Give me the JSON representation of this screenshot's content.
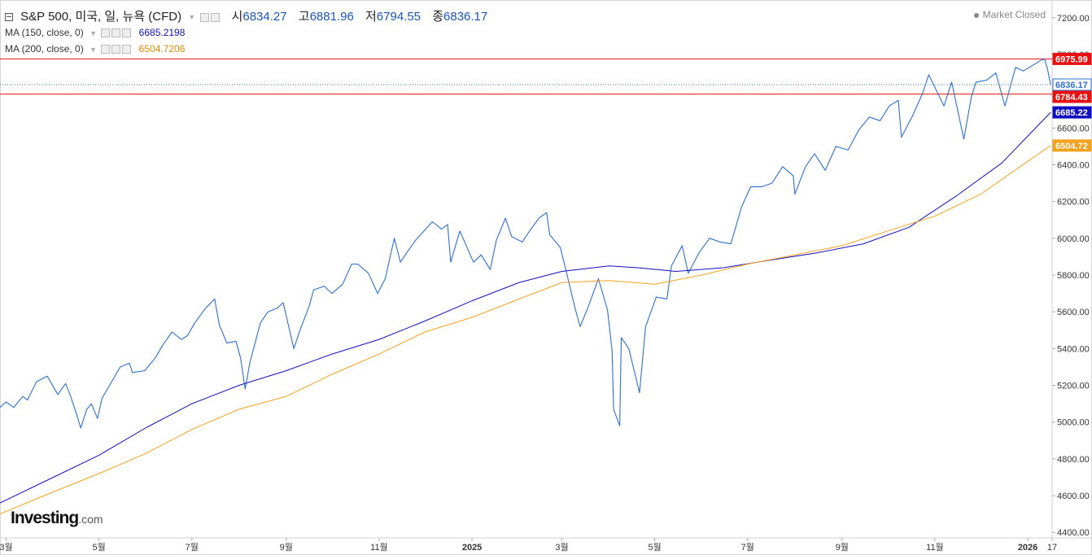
{
  "header": {
    "title": "S&P 500, 미국, 일, 뉴욕 (CFD)",
    "open_label": "시",
    "open_value": "6834.27",
    "high_label": "고",
    "high_value": "6881.96",
    "low_label": "저",
    "low_value": "6794.55",
    "close_label": "종",
    "close_value": "6836.17",
    "market_status": "Market Closed"
  },
  "indicators": [
    {
      "label": "MA (150, close, 0)",
      "value": "6685.2198",
      "color": "#1010c0"
    },
    {
      "label": "MA (200, close, 0)",
      "value": "6504.7206",
      "color": "#e08a00"
    }
  ],
  "brand": {
    "name": "Investing",
    "suffix": ".com"
  },
  "colors": {
    "price": "#2f6fd0",
    "ma150": "#1010c0",
    "ma200": "#f4a21e",
    "resistance": "#e81010",
    "last": "#2f6fd0"
  },
  "chart_data": {
    "type": "line",
    "y_axis_ticks": [
      4400,
      4600,
      4800,
      5000,
      5200,
      5400,
      5600,
      5800,
      6000,
      6200,
      6400,
      6600,
      6800,
      7000,
      7200
    ],
    "y_axis_tick_labels": [
      "4400.00",
      "4600.00",
      "4800.00",
      "5000.00",
      "5200.00",
      "5400.00",
      "5600.00",
      "5800.00",
      "6000.00",
      "6200.00",
      "6400.00",
      "6600.00",
      "6800.00",
      "7000.00",
      "7200.00"
    ],
    "ylim": [
      4370,
      7270
    ],
    "x_range": [
      "2024-02-26",
      "2026-01-17"
    ],
    "x_ticks": [
      {
        "date": "2024-03-01",
        "label": "3월"
      },
      {
        "date": "2024-05-01",
        "label": "5월"
      },
      {
        "date": "2024-07-01",
        "label": "7월"
      },
      {
        "date": "2024-09-01",
        "label": "9월"
      },
      {
        "date": "2024-11-01",
        "label": "11월"
      },
      {
        "date": "2025-01-01",
        "label": "2025",
        "bold": true
      },
      {
        "date": "2025-03-01",
        "label": "3월"
      },
      {
        "date": "2025-05-01",
        "label": "5월"
      },
      {
        "date": "2025-07-01",
        "label": "7월"
      },
      {
        "date": "2025-09-01",
        "label": "9월"
      },
      {
        "date": "2025-11-01",
        "label": "11월"
      },
      {
        "date": "2026-01-01",
        "label": "2026",
        "bold": true
      },
      {
        "date": "2026-01-17",
        "label": "17"
      }
    ],
    "horizontal_lines": [
      {
        "value": 6975.99,
        "label": "6975.99",
        "color": "#e81010",
        "style": "solid"
      },
      {
        "value": 6784.43,
        "label": "6784.43",
        "color": "#e81010",
        "style": "solid"
      },
      {
        "value": 6836.17,
        "label": "6836.17",
        "color": "#2f6fd0",
        "style": "dotted"
      }
    ],
    "series": [
      {
        "key": "price",
        "points": [
          [
            "2024-02-26",
            5080
          ],
          [
            "2024-03-01",
            5110
          ],
          [
            "2024-03-06",
            5080
          ],
          [
            "2024-03-12",
            5140
          ],
          [
            "2024-03-15",
            5120
          ],
          [
            "2024-03-21",
            5220
          ],
          [
            "2024-03-28",
            5250
          ],
          [
            "2024-04-04",
            5150
          ],
          [
            "2024-04-09",
            5210
          ],
          [
            "2024-04-12",
            5150
          ],
          [
            "2024-04-16",
            5050
          ],
          [
            "2024-04-19",
            4968
          ],
          [
            "2024-04-23",
            5070
          ],
          [
            "2024-04-26",
            5100
          ],
          [
            "2024-04-30",
            5020
          ],
          [
            "2024-05-03",
            5130
          ],
          [
            "2024-05-08",
            5200
          ],
          [
            "2024-05-15",
            5300
          ],
          [
            "2024-05-21",
            5320
          ],
          [
            "2024-05-23",
            5270
          ],
          [
            "2024-05-31",
            5280
          ],
          [
            "2024-06-07",
            5350
          ],
          [
            "2024-06-12",
            5420
          ],
          [
            "2024-06-18",
            5490
          ],
          [
            "2024-06-24",
            5450
          ],
          [
            "2024-06-28",
            5470
          ],
          [
            "2024-07-03",
            5540
          ],
          [
            "2024-07-10",
            5620
          ],
          [
            "2024-07-16",
            5670
          ],
          [
            "2024-07-19",
            5530
          ],
          [
            "2024-07-24",
            5430
          ],
          [
            "2024-07-30",
            5440
          ],
          [
            "2024-08-02",
            5350
          ],
          [
            "2024-08-05",
            5180
          ],
          [
            "2024-08-08",
            5320
          ],
          [
            "2024-08-15",
            5540
          ],
          [
            "2024-08-20",
            5600
          ],
          [
            "2024-08-26",
            5620
          ],
          [
            "2024-08-30",
            5650
          ],
          [
            "2024-09-06",
            5400
          ],
          [
            "2024-09-10",
            5500
          ],
          [
            "2024-09-16",
            5630
          ],
          [
            "2024-09-19",
            5720
          ],
          [
            "2024-09-26",
            5740
          ],
          [
            "2024-10-01",
            5700
          ],
          [
            "2024-10-08",
            5750
          ],
          [
            "2024-10-14",
            5860
          ],
          [
            "2024-10-18",
            5860
          ],
          [
            "2024-10-25",
            5810
          ],
          [
            "2024-10-31",
            5700
          ],
          [
            "2024-11-05",
            5780
          ],
          [
            "2024-11-11",
            6000
          ],
          [
            "2024-11-15",
            5870
          ],
          [
            "2024-11-19",
            5920
          ],
          [
            "2024-11-25",
            5990
          ],
          [
            "2024-12-06",
            6090
          ],
          [
            "2024-12-12",
            6050
          ],
          [
            "2024-12-16",
            6075
          ],
          [
            "2024-12-18",
            5870
          ],
          [
            "2024-12-24",
            6040
          ],
          [
            "2025-01-02",
            5870
          ],
          [
            "2025-01-07",
            5910
          ],
          [
            "2025-01-13",
            5830
          ],
          [
            "2025-01-17",
            5990
          ],
          [
            "2025-01-23",
            6110
          ],
          [
            "2025-01-27",
            6010
          ],
          [
            "2025-02-03",
            5980
          ],
          [
            "2025-02-07",
            6030
          ],
          [
            "2025-02-14",
            6110
          ],
          [
            "2025-02-19",
            6140
          ],
          [
            "2025-02-21",
            6020
          ],
          [
            "2025-02-28",
            5950
          ],
          [
            "2025-03-03",
            5850
          ],
          [
            "2025-03-10",
            5610
          ],
          [
            "2025-03-13",
            5520
          ],
          [
            "2025-03-18",
            5620
          ],
          [
            "2025-03-25",
            5780
          ],
          [
            "2025-03-31",
            5610
          ],
          [
            "2025-04-03",
            5390
          ],
          [
            "2025-04-04",
            5070
          ],
          [
            "2025-04-08",
            4980
          ],
          [
            "2025-04-09",
            5460
          ],
          [
            "2025-04-14",
            5400
          ],
          [
            "2025-04-21",
            5160
          ],
          [
            "2025-04-25",
            5520
          ],
          [
            "2025-05-02",
            5680
          ],
          [
            "2025-05-09",
            5670
          ],
          [
            "2025-05-12",
            5850
          ],
          [
            "2025-05-19",
            5960
          ],
          [
            "2025-05-23",
            5810
          ],
          [
            "2025-05-30",
            5920
          ],
          [
            "2025-06-06",
            6000
          ],
          [
            "2025-06-13",
            5980
          ],
          [
            "2025-06-20",
            5970
          ],
          [
            "2025-06-27",
            6170
          ],
          [
            "2025-07-03",
            6280
          ],
          [
            "2025-07-10",
            6280
          ],
          [
            "2025-07-17",
            6300
          ],
          [
            "2025-07-24",
            6390
          ],
          [
            "2025-07-31",
            6340
          ],
          [
            "2025-08-01",
            6240
          ],
          [
            "2025-08-08",
            6390
          ],
          [
            "2025-08-14",
            6460
          ],
          [
            "2025-08-21",
            6370
          ],
          [
            "2025-08-28",
            6500
          ],
          [
            "2025-09-05",
            6480
          ],
          [
            "2025-09-12",
            6590
          ],
          [
            "2025-09-19",
            6660
          ],
          [
            "2025-09-26",
            6640
          ],
          [
            "2025-10-02",
            6720
          ],
          [
            "2025-10-08",
            6750
          ],
          [
            "2025-10-10",
            6550
          ],
          [
            "2025-10-17",
            6660
          ],
          [
            "2025-10-24",
            6790
          ],
          [
            "2025-10-28",
            6890
          ],
          [
            "2025-11-04",
            6770
          ],
          [
            "2025-11-07",
            6720
          ],
          [
            "2025-11-12",
            6850
          ],
          [
            "2025-11-20",
            6540
          ],
          [
            "2025-11-25",
            6770
          ],
          [
            "2025-11-28",
            6850
          ],
          [
            "2025-12-05",
            6860
          ],
          [
            "2025-12-11",
            6900
          ],
          [
            "2025-12-17",
            6720
          ],
          [
            "2025-12-24",
            6930
          ],
          [
            "2025-12-29",
            6910
          ],
          [
            "2026-01-06",
            6950
          ],
          [
            "2026-01-09",
            6966
          ],
          [
            "2026-01-12",
            6977
          ],
          [
            "2026-01-14",
            6920
          ],
          [
            "2026-01-16",
            6836
          ]
        ]
      },
      {
        "key": "ma150",
        "points": [
          [
            "2024-02-26",
            4560
          ],
          [
            "2024-04-01",
            4700
          ],
          [
            "2024-05-01",
            4820
          ],
          [
            "2024-06-01",
            4970
          ],
          [
            "2024-07-01",
            5100
          ],
          [
            "2024-08-01",
            5200
          ],
          [
            "2024-09-01",
            5280
          ],
          [
            "2024-10-01",
            5370
          ],
          [
            "2024-11-01",
            5450
          ],
          [
            "2024-12-01",
            5550
          ],
          [
            "2025-01-01",
            5660
          ],
          [
            "2025-02-01",
            5760
          ],
          [
            "2025-03-01",
            5820
          ],
          [
            "2025-04-01",
            5850
          ],
          [
            "2025-04-20",
            5840
          ],
          [
            "2025-05-15",
            5820
          ],
          [
            "2025-06-15",
            5840
          ],
          [
            "2025-07-15",
            5880
          ],
          [
            "2025-08-15",
            5920
          ],
          [
            "2025-09-15",
            5970
          ],
          [
            "2025-10-15",
            6060
          ],
          [
            "2025-11-15",
            6230
          ],
          [
            "2025-12-15",
            6410
          ],
          [
            "2026-01-16",
            6685
          ]
        ]
      },
      {
        "key": "ma200",
        "points": [
          [
            "2024-02-26",
            4500
          ],
          [
            "2024-04-01",
            4620
          ],
          [
            "2024-05-01",
            4720
          ],
          [
            "2024-06-01",
            4830
          ],
          [
            "2024-07-01",
            4960
          ],
          [
            "2024-08-01",
            5070
          ],
          [
            "2024-09-01",
            5140
          ],
          [
            "2024-10-01",
            5260
          ],
          [
            "2024-11-01",
            5370
          ],
          [
            "2024-12-01",
            5490
          ],
          [
            "2025-01-01",
            5570
          ],
          [
            "2025-02-01",
            5670
          ],
          [
            "2025-03-01",
            5760
          ],
          [
            "2025-04-01",
            5770
          ],
          [
            "2025-05-01",
            5750
          ],
          [
            "2025-06-01",
            5800
          ],
          [
            "2025-07-01",
            5860
          ],
          [
            "2025-08-01",
            5910
          ],
          [
            "2025-09-01",
            5960
          ],
          [
            "2025-10-01",
            6040
          ],
          [
            "2025-11-01",
            6120
          ],
          [
            "2025-12-01",
            6240
          ],
          [
            "2026-01-16",
            6505
          ]
        ]
      }
    ],
    "grid": false
  }
}
